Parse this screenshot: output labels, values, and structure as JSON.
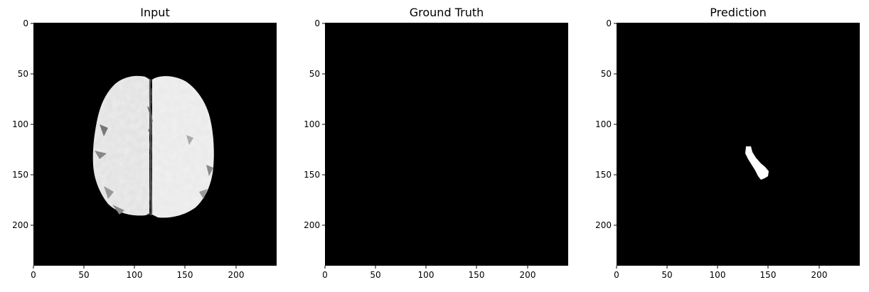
{
  "panels": [
    {
      "title": "Input",
      "xticks": [
        "0",
        "50",
        "100",
        "150",
        "200"
      ],
      "yticks": [
        "0",
        "50",
        "100",
        "150",
        "200"
      ],
      "content": "brain-mri-slice"
    },
    {
      "title": "Ground Truth",
      "xticks": [
        "0",
        "50",
        "100",
        "150",
        "200"
      ],
      "yticks": [
        "0",
        "50",
        "100",
        "150",
        "200"
      ],
      "content": "empty-mask"
    },
    {
      "title": "Prediction",
      "xticks": [
        "0",
        "50",
        "100",
        "150",
        "200"
      ],
      "yticks": [
        "0",
        "50",
        "100",
        "150",
        "200"
      ],
      "content": "predicted-mask"
    }
  ],
  "colors": {
    "background": "#000000",
    "foreground": "#ffffff",
    "tissue": "#e8e8e8"
  }
}
